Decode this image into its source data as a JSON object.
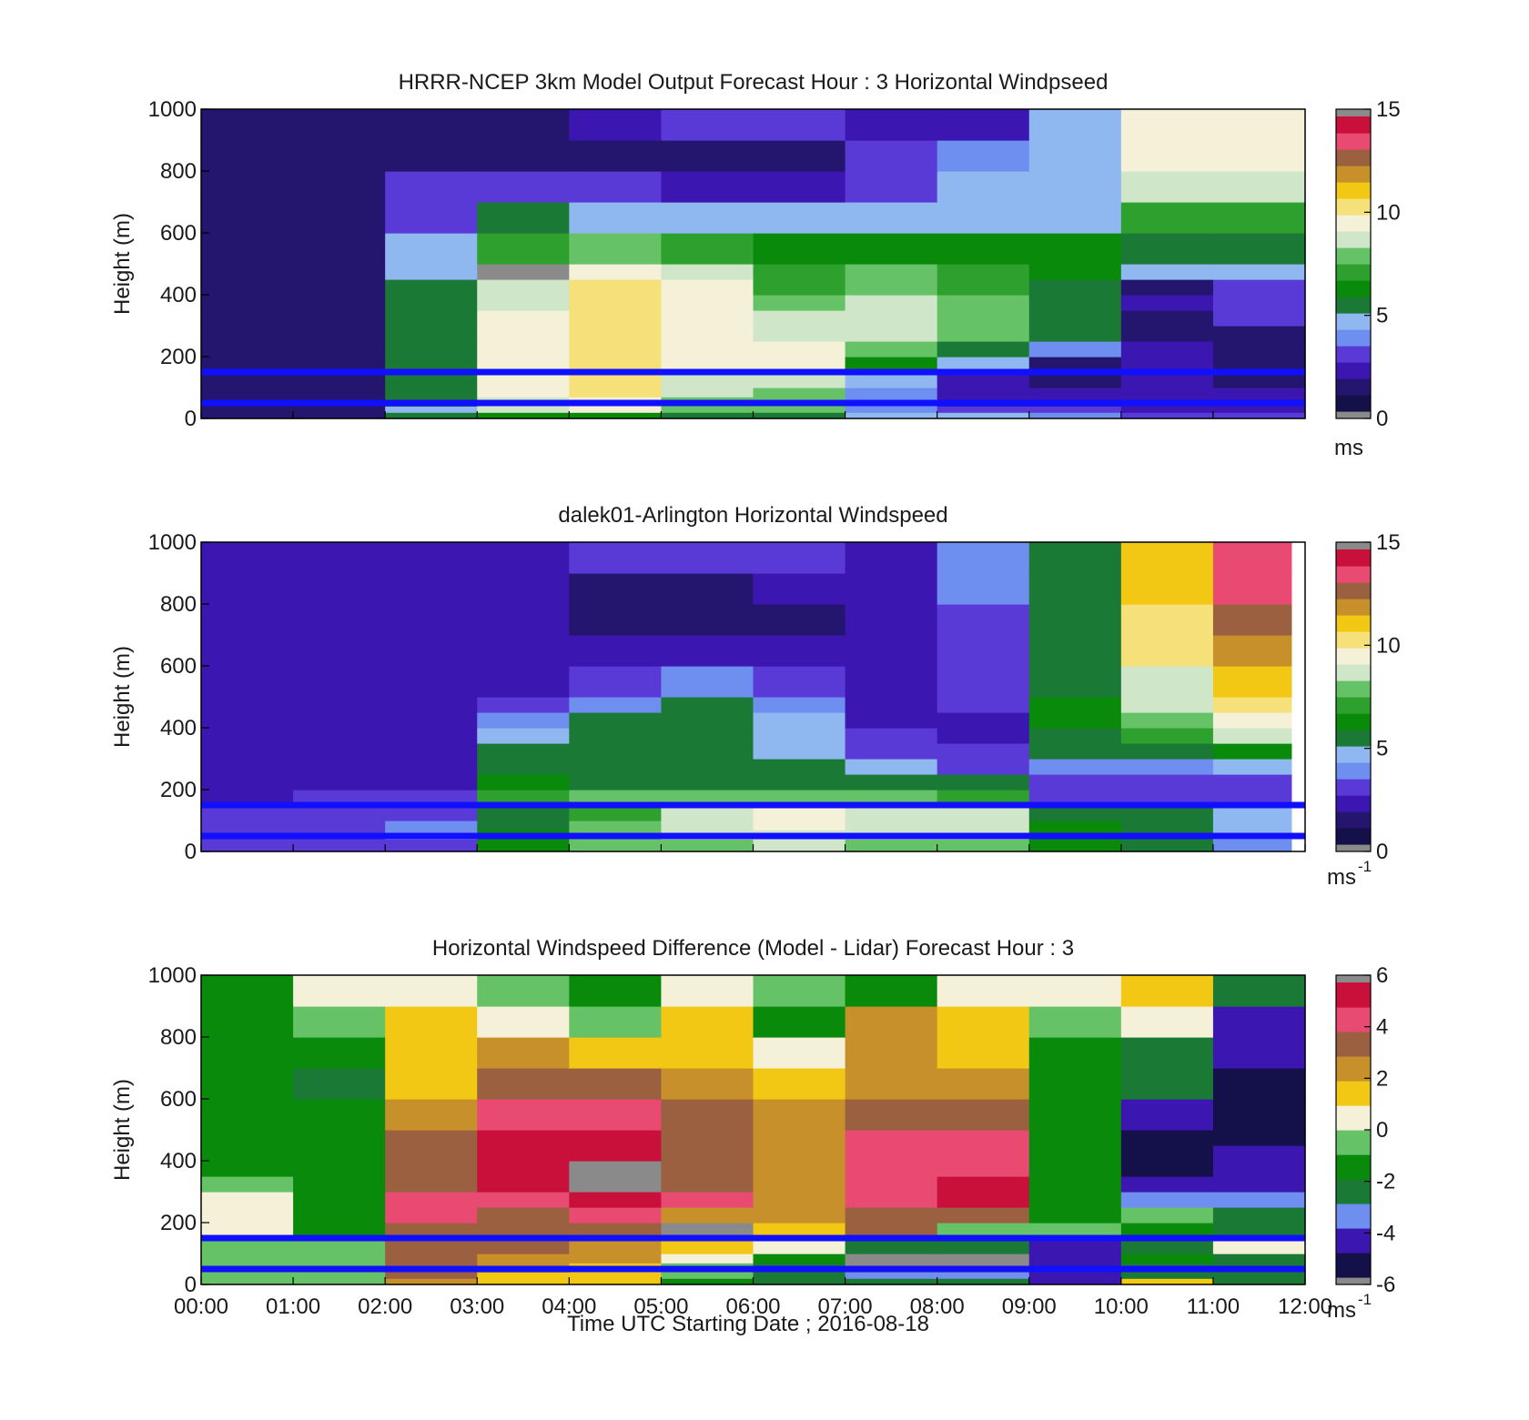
{
  "figure": {
    "x_time_label": "Time UTC  Starting Date ; 2016-08-18"
  },
  "colors": {
    "axis": "#000000",
    "reference_line": "#1010ff",
    "missing": "#8a8a8a",
    "speed_scale": [
      "#14104a",
      "#24156e",
      "#3b16b0",
      "#5a3ad6",
      "#6f8ff0",
      "#8fb7f0",
      "#1a7a35",
      "#0a8a0a",
      "#2ea02e",
      "#66c266",
      "#cfe6c8",
      "#f5f0d8",
      "#f5e07a",
      "#f2c814",
      "#c8902a",
      "#9a6040",
      "#e84a72",
      "#c8103a"
    ],
    "diff_scale": [
      "#14104a",
      "#3b16b0",
      "#6f8ff0",
      "#1a7a35",
      "#0a8a0a",
      "#66c266",
      "#f5f0d8",
      "#f2c814",
      "#c8902a",
      "#9a6040",
      "#e84a72",
      "#c8103a"
    ]
  },
  "chart_data": [
    {
      "type": "heatmap",
      "title": "HRRR-NCEP 3km Model Output   Forecast Hour : 3 Horizontal Windpseed",
      "xlabel": "",
      "ylabel": "Height (m)",
      "x_range_hours": [
        0,
        12
      ],
      "ylim": [
        0,
        1000
      ],
      "yticks": [
        "0",
        "200",
        "400",
        "600",
        "800",
        "1000"
      ],
      "colorbar": {
        "range": [
          0,
          15
        ],
        "ticks": [
          "0",
          "5",
          "10",
          "15"
        ],
        "unit": "ms"
      },
      "reference_heights_m": [
        50,
        150
      ],
      "columns_hour_start": [
        0,
        1,
        2,
        3,
        4,
        5,
        6,
        7,
        8,
        9,
        10,
        11
      ],
      "rows_height_m": [
        [
          0,
          20
        ],
        [
          20,
          40
        ],
        [
          40,
          70
        ],
        [
          70,
          100
        ],
        [
          100,
          150
        ],
        [
          150,
          200
        ],
        [
          200,
          250
        ],
        [
          250,
          300
        ],
        [
          300,
          350
        ],
        [
          350,
          400
        ],
        [
          400,
          450
        ],
        [
          450,
          500
        ],
        [
          500,
          600
        ],
        [
          600,
          700
        ],
        [
          700,
          800
        ],
        [
          800,
          900
        ],
        [
          900,
          1000
        ]
      ],
      "values": [
        [
          1.2,
          1.6,
          5,
          6.5,
          6.2,
          5.5,
          5.2,
          4.8,
          4.6,
          3.8,
          3,
          2.5
        ],
        [
          1.2,
          1.6,
          4.5,
          9,
          9.5,
          7.5,
          7.5,
          3.5,
          2.5,
          2.6,
          2.2,
          2
        ],
        [
          1.2,
          1.6,
          5.5,
          8.5,
          9.5,
          8,
          8,
          3.5,
          2.2,
          2.4,
          2.2,
          1.9
        ],
        [
          1.2,
          1.5,
          5.5,
          9.5,
          10.5,
          8.5,
          8,
          3.5,
          2,
          1.8,
          2,
          1.8
        ],
        [
          1.2,
          1.5,
          5.5,
          9.5,
          10.5,
          9,
          8.5,
          4.5,
          2,
          1.2,
          2,
          1.5
        ],
        [
          1.2,
          1.5,
          5.5,
          9.5,
          10.5,
          9.5,
          9.5,
          6,
          4.8,
          1.5,
          1.8,
          1.2
        ],
        [
          1.2,
          1.5,
          5.5,
          9.5,
          10.5,
          9.5,
          9.5,
          7.5,
          5,
          3.5,
          1.8,
          1.5
        ],
        [
          1.2,
          1.5,
          5.5,
          9.5,
          10.5,
          9.5,
          9,
          9,
          7.5,
          5,
          1.5,
          1.2
        ],
        [
          1.2,
          1.5,
          5.5,
          9.5,
          10.5,
          9.5,
          8.5,
          9,
          8,
          5,
          1.5,
          2.5
        ],
        [
          1.2,
          1.5,
          5,
          8.5,
          10,
          9.5,
          7.5,
          8.5,
          7.5,
          5,
          1.8,
          2.8
        ],
        [
          1.2,
          1.5,
          5,
          8.5,
          10,
          9.5,
          7,
          8,
          7,
          5.5,
          1.5,
          2.5
        ],
        [
          1.2,
          1.5,
          4.5,
          null,
          9.5,
          8.5,
          7,
          7.5,
          7,
          6,
          4.5,
          4.5
        ],
        [
          1.1,
          1.4,
          4.5,
          7,
          7.5,
          7,
          6,
          6.5,
          6.5,
          6,
          5,
          5
        ],
        [
          1.1,
          1.4,
          3,
          5,
          4.8,
          4.8,
          4.5,
          4.5,
          4.6,
          4.8,
          7,
          7
        ],
        [
          1.1,
          1.3,
          2.5,
          2.6,
          3,
          2.2,
          2.2,
          3,
          4.3,
          4.5,
          8.5,
          8.5
        ],
        [
          1.1,
          1.3,
          1.4,
          1.4,
          1.5,
          1.4,
          1.3,
          3.2,
          3.4,
          4.5,
          9.5,
          9.5
        ],
        [
          1.1,
          1.3,
          1.5,
          1.6,
          2,
          3.3,
          3.3,
          2.2,
          2.2,
          4.3,
          9.5,
          9.5
        ]
      ]
    },
    {
      "type": "heatmap",
      "title": "dalek01-Arlington  Horizontal Windspeed",
      "xlabel": "",
      "ylabel": "Height (m)",
      "x_range_hours": [
        0,
        12
      ],
      "ylim": [
        0,
        1000
      ],
      "yticks": [
        "0",
        "200",
        "400",
        "600",
        "800",
        "1000"
      ],
      "colorbar": {
        "range": [
          0,
          15
        ],
        "ticks": [
          "0",
          "5",
          "10",
          "15"
        ],
        "unit": "ms",
        "unit_exponent": "-1"
      },
      "reference_heights_m": [
        50,
        150
      ],
      "data_end_hour": 11.85,
      "columns_hour_start": [
        0,
        1,
        2,
        3,
        4,
        5,
        6,
        7,
        8,
        9,
        10,
        11
      ],
      "rows_height_m": [
        [
          0,
          20
        ],
        [
          20,
          40
        ],
        [
          40,
          70
        ],
        [
          70,
          100
        ],
        [
          100,
          150
        ],
        [
          150,
          200
        ],
        [
          200,
          250
        ],
        [
          250,
          300
        ],
        [
          300,
          350
        ],
        [
          350,
          400
        ],
        [
          400,
          450
        ],
        [
          450,
          500
        ],
        [
          500,
          600
        ],
        [
          600,
          700
        ],
        [
          700,
          800
        ],
        [
          800,
          900
        ],
        [
          900,
          1000
        ]
      ],
      "values": [
        [
          2.5,
          2.5,
          3,
          6,
          8,
          8,
          9,
          8,
          8,
          6,
          5,
          4
        ],
        [
          2.5,
          2.5,
          3,
          6,
          8,
          8,
          9,
          8,
          8,
          6,
          5,
          4
        ],
        [
          2.8,
          3,
          3.5,
          6,
          8,
          9,
          9,
          9,
          9,
          6,
          5,
          4.5
        ],
        [
          2.8,
          3,
          3.5,
          5.5,
          7.5,
          9,
          9.5,
          9,
          8.5,
          6,
          5,
          4.5
        ],
        [
          2.5,
          3,
          3,
          5,
          7,
          9,
          9.5,
          9,
          8.5,
          5.5,
          5,
          4.5
        ],
        [
          2.2,
          2.6,
          2.6,
          7,
          7.5,
          7.5,
          7.5,
          7.5,
          7,
          3,
          2.5,
          2.5
        ],
        [
          2.2,
          2.4,
          2.3,
          6,
          5.5,
          5.5,
          5.5,
          5.5,
          5,
          2.6,
          2.8,
          3
        ],
        [
          2.2,
          2.3,
          2.2,
          5,
          5,
          5,
          5,
          4.5,
          3,
          4,
          4,
          4.5
        ],
        [
          2.2,
          2.2,
          2.2,
          5,
          5,
          5,
          4.8,
          3,
          2.5,
          5,
          5.5,
          6.5
        ],
        [
          2.2,
          2.2,
          2.2,
          4.5,
          5,
          5,
          4.5,
          2.6,
          2.2,
          5.5,
          7,
          8.5
        ],
        [
          2.2,
          2.2,
          2.2,
          3.5,
          5,
          5,
          4.5,
          2.4,
          2.2,
          6,
          8,
          9.5
        ],
        [
          2.2,
          2.2,
          2.2,
          2.6,
          4,
          5,
          3.5,
          2.2,
          2.5,
          6,
          8.5,
          10
        ],
        [
          2.2,
          2.2,
          2.2,
          2.2,
          2.6,
          3.5,
          2.6,
          2.2,
          3,
          5.5,
          9,
          11
        ],
        [
          2.2,
          2.2,
          2.2,
          2.2,
          2.2,
          2.4,
          2.2,
          2.2,
          3,
          5,
          10,
          12
        ],
        [
          2.2,
          2.2,
          2.2,
          1.8,
          1.5,
          1.5,
          1.6,
          2.2,
          3,
          5,
          10,
          13
        ],
        [
          2.2,
          2.2,
          2,
          1.8,
          1.6,
          1.6,
          1.8,
          2.4,
          3.5,
          5,
          11,
          14
        ],
        [
          2.2,
          2.2,
          2,
          2.4,
          3,
          3.2,
          2.8,
          2.4,
          3.5,
          5,
          11,
          14
        ]
      ]
    },
    {
      "type": "heatmap",
      "title": "Horizontal Windspeed Difference (Model - Lidar) Forecast Hour : 3",
      "xlabel": "Time UTC  Starting Date ; 2016-08-18",
      "ylabel": "Height (m)",
      "x_range_hours": [
        0,
        12
      ],
      "ylim": [
        0,
        1000
      ],
      "yticks": [
        "0",
        "200",
        "400",
        "600",
        "800",
        "1000"
      ],
      "xticks": [
        "00:00",
        "01:00",
        "02:00",
        "03:00",
        "04:00",
        "05:00",
        "06:00",
        "07:00",
        "08:00",
        "09:00",
        "10:00",
        "11:00",
        "12:00"
      ],
      "colorbar": {
        "range": [
          -6,
          6
        ],
        "ticks": [
          "-6",
          "-4",
          "-2",
          "0",
          "2",
          "4",
          "6"
        ],
        "unit": "ms",
        "unit_exponent": "-1"
      },
      "reference_heights_m": [
        50,
        150
      ],
      "columns_hour_start": [
        0,
        1,
        2,
        3,
        4,
        5,
        6,
        7,
        8,
        9,
        10,
        11
      ],
      "rows_height_m": [
        [
          0,
          20
        ],
        [
          20,
          40
        ],
        [
          40,
          70
        ],
        [
          70,
          100
        ],
        [
          100,
          150
        ],
        [
          150,
          200
        ],
        [
          200,
          250
        ],
        [
          250,
          300
        ],
        [
          300,
          350
        ],
        [
          350,
          400
        ],
        [
          400,
          450
        ],
        [
          450,
          500
        ],
        [
          500,
          600
        ],
        [
          600,
          700
        ],
        [
          700,
          800
        ],
        [
          800,
          900
        ],
        [
          900,
          1000
        ]
      ],
      "values": [
        [
          -1,
          -1,
          2,
          1,
          1,
          -2,
          -3,
          -3,
          -3,
          -5,
          1,
          -3
        ],
        [
          -0.5,
          -0.5,
          3,
          1,
          1,
          -1,
          -3,
          -3.5,
          -3.5,
          -5,
          -3,
          -3
        ],
        [
          -0.5,
          -0.5,
          3,
          2,
          1,
          -1,
          -2.5,
          null,
          null,
          -5,
          -3,
          -3
        ],
        [
          -0.5,
          -0.5,
          3,
          2,
          2,
          0.5,
          -2,
          null,
          null,
          -5,
          -2,
          -2.5
        ],
        [
          -0.3,
          -1,
          3,
          3,
          2,
          1,
          0.5,
          -2.5,
          -2.5,
          -5,
          -2.5,
          0.5
        ],
        [
          0.8,
          -1.5,
          3.5,
          3,
          3,
          null,
          1.5,
          3,
          -0.3,
          -0.5,
          -1.5,
          -2.5
        ],
        [
          0.8,
          -1.5,
          4.5,
          3.5,
          4.5,
          2,
          2,
          3,
          3,
          -2,
          -0.5,
          -3
        ],
        [
          0,
          -1.5,
          4,
          4,
          5,
          4,
          2.5,
          4,
          5,
          -2,
          -4,
          -4
        ],
        [
          -1,
          -2,
          3,
          5,
          null,
          3,
          2,
          4.5,
          5,
          -2,
          -5,
          -4.5
        ],
        [
          -1.5,
          -2,
          3,
          5.5,
          null,
          3,
          2,
          4.5,
          4.5,
          -2,
          -5.5,
          -5
        ],
        [
          -1.5,
          -2,
          3,
          5.5,
          5,
          3.5,
          2,
          4.5,
          4.5,
          -2,
          -5.5,
          -5
        ],
        [
          -1.5,
          -2,
          3,
          5.5,
          5,
          3.5,
          2,
          4,
          4,
          -1.5,
          -5.5,
          -5.5
        ],
        [
          -2,
          -2,
          2.5,
          4,
          4,
          3,
          2,
          3,
          3,
          -1.5,
          -5,
          -5.5
        ],
        [
          -2,
          -2.5,
          1.5,
          3,
          3,
          2,
          1.5,
          2,
          2,
          -1.5,
          -3,
          -5.5
        ],
        [
          -2,
          -2,
          1,
          2,
          1,
          1,
          0.5,
          2,
          1.5,
          -1.5,
          -2.5,
          -5
        ],
        [
          -2,
          -1,
          1,
          0.5,
          -1,
          1,
          -1.5,
          2,
          1,
          -1,
          0.5,
          -4.5
        ],
        [
          -2,
          0,
          0,
          -1,
          -1.5,
          0.5,
          -1,
          -2,
          0,
          0,
          1,
          -3
        ]
      ]
    }
  ]
}
